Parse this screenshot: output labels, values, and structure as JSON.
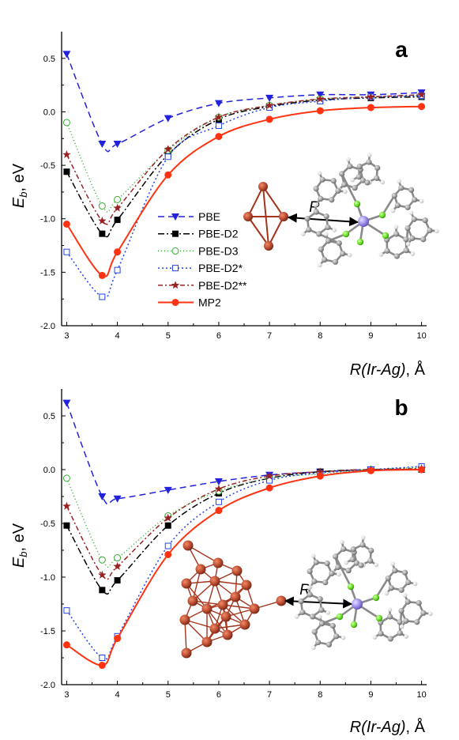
{
  "chart_data": [
    {
      "type": "line",
      "panel_label": "a",
      "ylabel": "E_b, eV",
      "ylabel_main": "E",
      "ylabel_sub": "b",
      "ylabel_unit": ", eV",
      "xlabel": "R(Ir-Ag), Å",
      "xlabel_main": "R(Ir-Ag)",
      "xlabel_unit": ", Å",
      "xlim": [
        2.9,
        10.1
      ],
      "ylim": [
        -2.0,
        0.75
      ],
      "xticks": [
        3,
        4,
        5,
        6,
        7,
        8,
        9,
        10
      ],
      "yticks": [
        -2.0,
        -1.5,
        -1.0,
        -0.5,
        0.0,
        0.5
      ],
      "ytick_labels": [
        "-2.0",
        "-1.5",
        "-1.0",
        "-0.5",
        "0.0",
        "0.5"
      ],
      "legend_position": "center-left",
      "inset_label": "R",
      "series": [
        {
          "name": "PBE",
          "color": "#2222dd",
          "marker": "triangle-down",
          "dash": "8,5",
          "x": [
            3.0,
            3.7,
            4.0,
            5.0,
            6.0,
            7.0,
            8.0,
            9.0,
            10.0
          ],
          "y": [
            0.54,
            -0.3,
            -0.3,
            -0.06,
            0.08,
            0.13,
            0.16,
            0.16,
            0.18
          ]
        },
        {
          "name": "PBE-D2",
          "color": "#000000",
          "marker": "square-filled",
          "dash": "8,3,2,3",
          "x": [
            3.0,
            3.7,
            4.0,
            5.0,
            6.0,
            7.0,
            8.0,
            9.0,
            10.0
          ],
          "y": [
            -0.56,
            -1.14,
            -1.01,
            -0.4,
            -0.07,
            0.05,
            0.11,
            0.13,
            0.14
          ]
        },
        {
          "name": "PBE-D3",
          "color": "#33aa33",
          "marker": "circle-open",
          "dash": "1,3",
          "x": [
            3.0,
            3.7,
            4.0,
            5.0,
            6.0,
            7.0,
            8.0,
            9.0,
            10.0
          ],
          "y": [
            -0.1,
            -0.88,
            -0.82,
            -0.36,
            -0.05,
            0.06,
            0.12,
            0.14,
            0.15
          ]
        },
        {
          "name": "PBE-D2*",
          "color": "#2244ee",
          "marker": "square-open",
          "dash": "2,3",
          "x": [
            3.0,
            3.7,
            4.0,
            5.0,
            6.0,
            7.0,
            8.0,
            9.0,
            10.0
          ],
          "y": [
            -1.31,
            -1.73,
            -1.48,
            -0.42,
            -0.13,
            0.04,
            0.1,
            0.14,
            0.15
          ]
        },
        {
          "name": "PBE-D2**",
          "color": "#992222",
          "marker": "star",
          "dash": "6,3,2,3",
          "x": [
            3.0,
            3.7,
            4.0,
            5.0,
            6.0,
            7.0,
            8.0,
            9.0,
            10.0
          ],
          "y": [
            -0.4,
            -1.02,
            -0.9,
            -0.35,
            -0.05,
            0.06,
            0.12,
            0.14,
            0.16
          ]
        },
        {
          "name": "MP2",
          "color": "#ff3311",
          "marker": "circle-filled",
          "dash": "",
          "x": [
            3.0,
            3.7,
            4.0,
            5.0,
            6.0,
            7.0,
            8.0,
            9.0,
            10.0
          ],
          "y": [
            -1.05,
            -1.53,
            -1.31,
            -0.59,
            -0.23,
            -0.07,
            0.01,
            0.04,
            0.05
          ]
        }
      ]
    },
    {
      "type": "line",
      "panel_label": "b",
      "ylabel": "E_b, eV",
      "ylabel_main": "E",
      "ylabel_sub": "b",
      "ylabel_unit": ", eV",
      "xlabel": "R(Ir-Ag), Å",
      "xlabel_main": "R(Ir-Ag)",
      "xlabel_unit": ", Å",
      "xlim": [
        2.9,
        10.1
      ],
      "ylim": [
        -2.0,
        0.75
      ],
      "xticks": [
        3,
        4,
        5,
        6,
        7,
        8,
        9,
        10
      ],
      "yticks": [
        -2.0,
        -1.5,
        -1.0,
        -0.5,
        0.0,
        0.5
      ],
      "ytick_labels": [
        "-2.0",
        "-1.5",
        "-1.0",
        "-0.5",
        "0.0",
        "0.5"
      ],
      "inset_label": "R",
      "series": [
        {
          "name": "PBE",
          "color": "#2222dd",
          "marker": "triangle-down",
          "dash": "8,5",
          "x": [
            3.0,
            3.7,
            4.0,
            5.0,
            6.0,
            7.0,
            8.0,
            9.0,
            10.0
          ],
          "y": [
            0.62,
            -0.25,
            -0.27,
            -0.19,
            -0.11,
            -0.05,
            -0.02,
            0.0,
            0.0
          ]
        },
        {
          "name": "PBE-D2",
          "color": "#000000",
          "marker": "square-filled",
          "dash": "8,3,2,3",
          "x": [
            3.0,
            3.7,
            4.0,
            5.0,
            6.0,
            7.0,
            8.0,
            9.0,
            10.0
          ],
          "y": [
            -0.52,
            -1.12,
            -1.03,
            -0.52,
            -0.22,
            -0.08,
            -0.02,
            0.0,
            0.0
          ]
        },
        {
          "name": "PBE-D3",
          "color": "#33aa33",
          "marker": "circle-open",
          "dash": "1,3",
          "x": [
            3.0,
            3.7,
            4.0,
            5.0,
            6.0,
            7.0,
            8.0,
            9.0,
            10.0
          ],
          "y": [
            -0.08,
            -0.84,
            -0.82,
            -0.43,
            -0.2,
            -0.08,
            -0.04,
            0.0,
            0.02
          ]
        },
        {
          "name": "PBE-D2*",
          "color": "#2244ee",
          "marker": "square-open",
          "dash": "2,3",
          "x": [
            3.0,
            3.7,
            4.0,
            5.0,
            6.0,
            7.0,
            8.0,
            9.0,
            10.0
          ],
          "y": [
            -1.31,
            -1.75,
            -1.55,
            -0.71,
            -0.3,
            -0.1,
            -0.03,
            0.0,
            0.03
          ]
        },
        {
          "name": "PBE-D2**",
          "color": "#992222",
          "marker": "star",
          "dash": "6,3,2,3",
          "x": [
            3.0,
            3.7,
            4.0,
            5.0,
            6.0,
            7.0,
            8.0,
            9.0,
            10.0
          ],
          "y": [
            -0.34,
            -0.98,
            -0.9,
            -0.45,
            -0.18,
            -0.06,
            -0.02,
            0.0,
            0.01
          ]
        },
        {
          "name": "MP2",
          "color": "#ff3311",
          "marker": "circle-filled",
          "dash": "",
          "x": [
            3.0,
            3.7,
            4.0,
            5.0,
            6.0,
            7.0,
            8.0,
            9.0,
            10.0
          ],
          "y": [
            -1.63,
            -1.82,
            -1.57,
            -0.79,
            -0.38,
            -0.17,
            -0.06,
            -0.01,
            0.0
          ]
        }
      ]
    }
  ],
  "colors": {
    "silver_atom": "#b84a2e",
    "iridium_atom": "#9a8ae8",
    "nitrogen_atom": "#66dd22",
    "carbon_atom": "#9c9c9c",
    "hydrogen_atom": "#dcdcdc"
  }
}
